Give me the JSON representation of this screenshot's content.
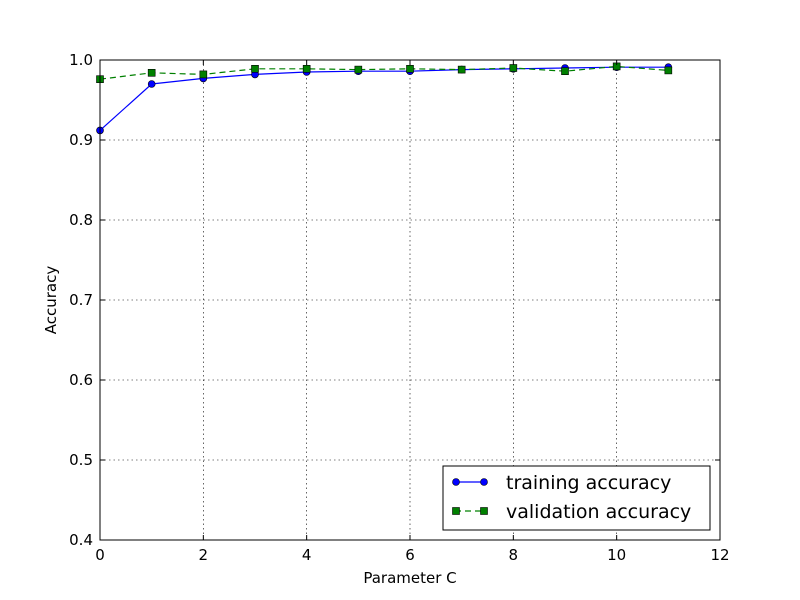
{
  "chart_data": {
    "type": "line",
    "title": "",
    "xlabel": "Parameter C",
    "ylabel": "Accuracy",
    "xlim": [
      0,
      12
    ],
    "ylim": [
      0.4,
      1.0
    ],
    "xticks": [
      "0",
      "2",
      "4",
      "6",
      "8",
      "10",
      "12"
    ],
    "yticks": [
      "0.4",
      "0.5",
      "0.6",
      "0.7",
      "0.8",
      "0.9",
      "1.0"
    ],
    "grid": true,
    "legend_position": "lower-right",
    "series": [
      {
        "name": "training accuracy",
        "color": "#0000ff",
        "line_style": "solid",
        "marker": "circle",
        "x": [
          0,
          1,
          2,
          3,
          4,
          5,
          6,
          7,
          8,
          9,
          10,
          11
        ],
        "values": [
          0.912,
          0.97,
          0.977,
          0.982,
          0.985,
          0.986,
          0.986,
          0.988,
          0.989,
          0.99,
          0.991,
          0.991
        ]
      },
      {
        "name": "validation accuracy",
        "color": "#008000",
        "line_style": "dashed",
        "marker": "square",
        "x": [
          0,
          1,
          2,
          3,
          4,
          5,
          6,
          7,
          8,
          9,
          10,
          11
        ],
        "values": [
          0.976,
          0.984,
          0.982,
          0.989,
          0.989,
          0.988,
          0.989,
          0.988,
          0.99,
          0.986,
          0.992,
          0.987
        ]
      }
    ]
  }
}
